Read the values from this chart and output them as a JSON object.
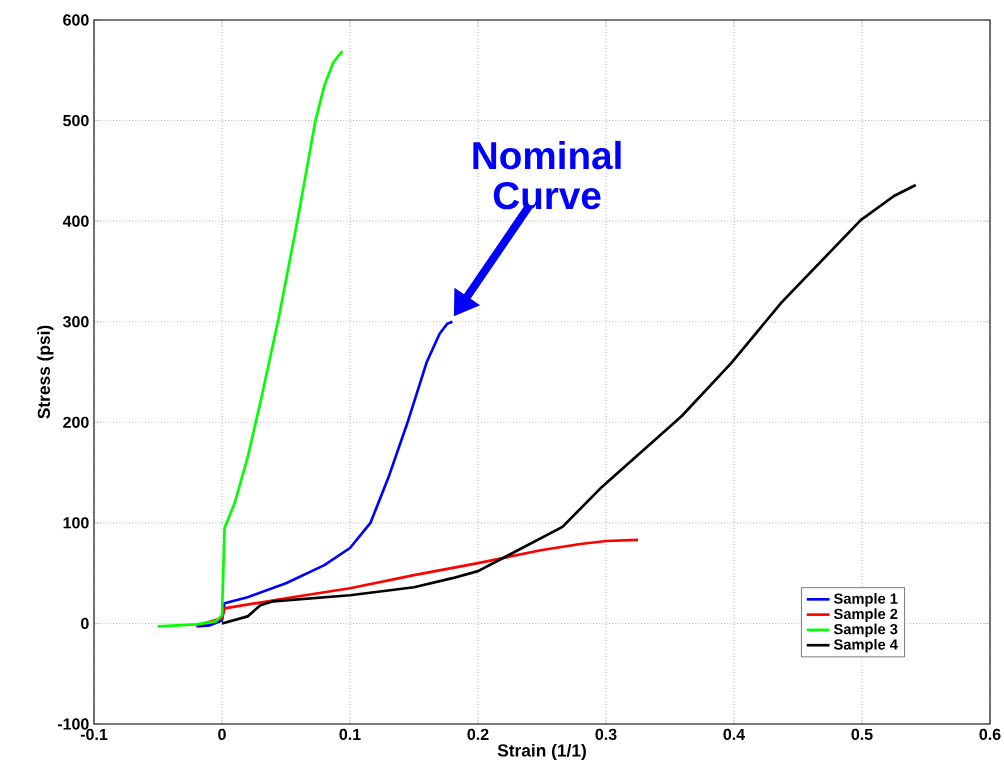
{
  "chart_data": {
    "type": "line",
    "xlabel": "Strain (1/1)",
    "ylabel": "Stress (psi)",
    "xlim": [
      -0.1,
      0.6
    ],
    "ylim": [
      -100,
      600
    ],
    "xticks": [
      -0.1,
      0,
      0.1,
      0.2,
      0.3,
      0.4,
      0.5,
      0.6
    ],
    "yticks": [
      -100,
      0,
      100,
      200,
      300,
      400,
      500,
      600
    ],
    "grid": true,
    "legend": "bottom right",
    "line_style": "solid",
    "marker": "none",
    "annotations": [
      {
        "text": "Nominal Curve",
        "x": 0.18,
        "y": 300
      }
    ],
    "series": [
      {
        "name": "Sample 1",
        "color": "#0000ff",
        "x": [
          -0.02,
          -0.01,
          0,
          0.002,
          0.02,
          0.05,
          0.08,
          0.1,
          0.116,
          0.13,
          0.145,
          0.16,
          0.17,
          0.176,
          0.18
        ],
        "values": [
          -3,
          -2,
          3,
          20,
          26,
          40,
          58,
          75,
          100,
          145,
          200,
          260,
          288,
          298,
          300
        ]
      },
      {
        "name": "Sample 2",
        "color": "#ff0000",
        "x": [
          -0.02,
          0,
          0.002,
          0.05,
          0.1,
          0.15,
          0.2,
          0.25,
          0.28,
          0.3,
          0.325
        ],
        "values": [
          -2,
          5,
          15,
          25,
          35,
          48,
          60,
          73,
          79,
          82,
          83
        ]
      },
      {
        "name": "Sample 3",
        "color": "#00ff00",
        "x": [
          -0.05,
          -0.02,
          -0.005,
          0,
          0.002,
          0.01,
          0.02,
          0.03,
          0.044,
          0.059,
          0.073,
          0.08,
          0.087,
          0.094
        ],
        "values": [
          -3,
          -1,
          2,
          8,
          95,
          120,
          165,
          220,
          302,
          401,
          500,
          535,
          558,
          569
        ]
      },
      {
        "name": "Sample 4",
        "color": "#000000",
        "x": [
          0,
          0.02,
          0.03,
          0.04,
          0.1,
          0.15,
          0.18,
          0.2,
          0.23,
          0.266,
          0.297,
          0.359,
          0.398,
          0.437,
          0.499,
          0.525,
          0.542
        ],
        "values": [
          0,
          7,
          18,
          22,
          28,
          36,
          45,
          52,
          72,
          96,
          136,
          206,
          259,
          319,
          401,
          425,
          436
        ]
      }
    ]
  }
}
